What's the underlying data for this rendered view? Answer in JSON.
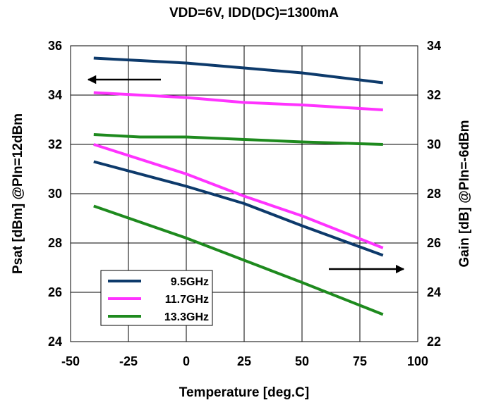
{
  "chart_data": {
    "type": "line",
    "title": "VDD=6V, IDD(DC)=1300mA",
    "xlabel": "Temperature [deg.C]",
    "ylabel_left": "Psat [dBm] @PIn=12dBm",
    "ylabel_right": "Gain [dB] @PIn=-6dBm",
    "xlim": [
      -50,
      100
    ],
    "ylim_left": [
      24,
      36
    ],
    "ylim_right": [
      22,
      34
    ],
    "xticks": [
      "-50",
      "-25",
      "0",
      "25",
      "50",
      "75",
      "100"
    ],
    "yticks_left": [
      "24",
      "26",
      "28",
      "30",
      "32",
      "34",
      "36"
    ],
    "yticks_right": [
      "22",
      "24",
      "26",
      "28",
      "30",
      "32",
      "34"
    ],
    "grid": true,
    "legend_position": "bottom-left",
    "legend": [
      "9.5GHz",
      "11.7GHz",
      "13.3GHz"
    ],
    "series": [
      {
        "name": "9.5GHz",
        "axis": "left",
        "color": "#0d3a6b",
        "x": [
          -40,
          0,
          25,
          50,
          85
        ],
        "values": [
          35.5,
          35.3,
          35.1,
          34.9,
          34.5
        ]
      },
      {
        "name": "11.7GHz",
        "axis": "left",
        "color": "#ff33ff",
        "x": [
          -40,
          0,
          25,
          50,
          85
        ],
        "values": [
          34.1,
          33.9,
          33.7,
          33.6,
          33.4
        ]
      },
      {
        "name": "13.3GHz",
        "axis": "left",
        "color": "#1e8a1e",
        "x": [
          -40,
          -20,
          0,
          25,
          50,
          85
        ],
        "values": [
          32.4,
          32.3,
          32.3,
          32.2,
          32.1,
          32.0
        ]
      },
      {
        "name": "9.5GHz",
        "axis": "right",
        "color": "#0d3a6b",
        "x": [
          -40,
          0,
          25,
          50,
          85
        ],
        "values": [
          29.3,
          28.3,
          27.6,
          26.7,
          25.5
        ]
      },
      {
        "name": "11.7GHz",
        "axis": "right",
        "color": "#ff33ff",
        "x": [
          -40,
          0,
          25,
          50,
          85
        ],
        "values": [
          30.0,
          28.8,
          27.9,
          27.1,
          25.8
        ]
      },
      {
        "name": "13.3GHz",
        "axis": "right",
        "color": "#1e8a1e",
        "x": [
          -40,
          0,
          25,
          50,
          85
        ],
        "values": [
          27.5,
          26.2,
          25.3,
          24.4,
          23.1
        ]
      }
    ],
    "annotations": [
      {
        "type": "arrow",
        "direction": "left",
        "indicates": "left axis"
      },
      {
        "type": "arrow",
        "direction": "right",
        "indicates": "right axis"
      }
    ]
  }
}
